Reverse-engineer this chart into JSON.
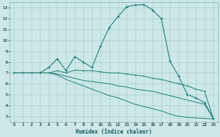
{
  "xlabel": "Humidex (Indice chaleur)",
  "background_color": "#cce8e8",
  "grid_color": "#aacccc",
  "line_color": "#1a7a6e",
  "xlim": [
    -0.5,
    23.5
  ],
  "ylim": [
    2.5,
    13.5
  ],
  "xticks": [
    0,
    1,
    2,
    3,
    4,
    5,
    6,
    7,
    8,
    9,
    10,
    11,
    12,
    13,
    14,
    15,
    16,
    17,
    18,
    19,
    20,
    21,
    22,
    23
  ],
  "yticks": [
    3,
    4,
    5,
    6,
    7,
    8,
    9,
    10,
    11,
    12,
    13
  ],
  "line1_x": [
    0,
    1,
    2,
    3,
    4,
    5,
    6,
    7,
    8,
    9,
    10,
    11,
    12,
    13,
    14,
    15,
    16,
    17,
    18,
    19,
    20,
    21,
    22,
    23
  ],
  "line1_y": [
    7.0,
    7.0,
    7.0,
    7.0,
    7.5,
    8.3,
    7.2,
    8.5,
    8.0,
    7.5,
    9.5,
    11.2,
    12.2,
    13.1,
    13.25,
    13.3,
    12.8,
    12.0,
    8.1,
    6.7,
    5.0,
    4.7,
    4.25,
    2.8
  ],
  "line2_x": [
    0,
    1,
    2,
    3,
    4,
    5,
    6,
    7,
    8,
    9,
    10,
    11,
    12,
    13,
    14,
    15,
    16,
    17,
    18,
    19,
    20,
    21,
    22,
    23
  ],
  "line2_y": [
    7.0,
    7.0,
    7.0,
    7.0,
    7.0,
    7.2,
    7.0,
    7.25,
    7.2,
    7.2,
    7.1,
    7.0,
    7.0,
    6.9,
    6.8,
    6.7,
    6.5,
    6.4,
    6.2,
    6.0,
    5.8,
    5.5,
    5.3,
    2.8
  ],
  "line3_x": [
    0,
    1,
    2,
    3,
    4,
    5,
    6,
    7,
    8,
    9,
    10,
    11,
    12,
    13,
    14,
    15,
    16,
    17,
    18,
    19,
    20,
    21,
    22,
    23
  ],
  "line3_y": [
    7.0,
    7.0,
    7.0,
    7.0,
    7.0,
    6.9,
    6.7,
    6.5,
    6.3,
    6.2,
    6.1,
    6.0,
    5.8,
    5.7,
    5.5,
    5.4,
    5.3,
    5.1,
    4.9,
    4.7,
    4.5,
    4.3,
    4.1,
    2.8
  ],
  "line4_x": [
    0,
    1,
    2,
    3,
    4,
    5,
    6,
    7,
    8,
    9,
    10,
    11,
    12,
    13,
    14,
    15,
    16,
    17,
    18,
    19,
    20,
    21,
    22,
    23
  ],
  "line4_y": [
    7.0,
    7.0,
    7.0,
    7.0,
    7.0,
    6.8,
    6.4,
    6.1,
    5.8,
    5.5,
    5.2,
    4.9,
    4.7,
    4.4,
    4.1,
    3.9,
    3.7,
    3.5,
    3.2,
    3.0,
    2.9,
    2.85,
    2.8,
    2.75
  ]
}
